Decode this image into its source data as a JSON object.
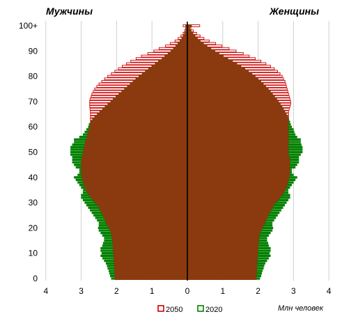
{
  "chart_data": {
    "type": "bar",
    "orientation": "horizontal-pyramid",
    "title": "",
    "left_label": "Мужчины",
    "right_label": "Женщины",
    "xlabel": "Млн человек",
    "x_ticks": [
      "4",
      "3",
      "2",
      "1",
      "0",
      "1",
      "2",
      "3",
      "4"
    ],
    "y_ticks": [
      "0",
      "10",
      "20",
      "30",
      "40",
      "50",
      "60",
      "70",
      "80",
      "90",
      "100+"
    ],
    "xlim": [
      -4,
      4
    ],
    "ylim": [
      0,
      100
    ],
    "grid": "vertical",
    "legend_position": "bottom-center",
    "series": [
      {
        "name": "2050",
        "style": "outline",
        "color": "#cc0000",
        "males": [
          2.05,
          2.05,
          2.06,
          2.06,
          2.06,
          2.07,
          2.07,
          2.08,
          2.08,
          2.08,
          2.1,
          2.1,
          2.1,
          2.1,
          2.12,
          2.12,
          2.13,
          2.14,
          2.16,
          2.18,
          2.22,
          2.26,
          2.3,
          2.32,
          2.35,
          2.38,
          2.42,
          2.46,
          2.5,
          2.54,
          2.6,
          2.66,
          2.72,
          2.78,
          2.82,
          2.86,
          2.9,
          2.92,
          2.94,
          2.96,
          2.98,
          2.99,
          3.0,
          3.0,
          3.0,
          3.0,
          3.0,
          3.0,
          2.98,
          2.96,
          2.95,
          2.94,
          2.92,
          2.9,
          2.88,
          2.86,
          2.84,
          2.82,
          2.8,
          2.78,
          2.76,
          2.75,
          2.74,
          2.74,
          2.74,
          2.74,
          2.74,
          2.75,
          2.76,
          2.76,
          2.76,
          2.75,
          2.72,
          2.7,
          2.66,
          2.62,
          2.56,
          2.5,
          2.42,
          2.34,
          2.25,
          2.15,
          2.05,
          1.95,
          1.84,
          1.72,
          1.6,
          1.45,
          1.3,
          1.12,
          0.95,
          0.8,
          0.62,
          0.48,
          0.35,
          0.26,
          0.18,
          0.12,
          0.08,
          0.05,
          0.12
        ],
        "females": [
          1.95,
          1.95,
          1.96,
          1.96,
          1.96,
          1.97,
          1.97,
          1.98,
          1.98,
          1.98,
          2.0,
          2.0,
          2.0,
          2.0,
          2.02,
          2.02,
          2.03,
          2.04,
          2.06,
          2.08,
          2.12,
          2.16,
          2.2,
          2.22,
          2.25,
          2.28,
          2.32,
          2.36,
          2.4,
          2.44,
          2.5,
          2.56,
          2.62,
          2.68,
          2.72,
          2.76,
          2.8,
          2.82,
          2.84,
          2.86,
          2.88,
          2.89,
          2.9,
          2.9,
          2.9,
          2.9,
          2.9,
          2.9,
          2.88,
          2.86,
          2.86,
          2.86,
          2.86,
          2.86,
          2.86,
          2.86,
          2.86,
          2.86,
          2.86,
          2.86,
          2.86,
          2.86,
          2.86,
          2.86,
          2.86,
          2.86,
          2.86,
          2.88,
          2.9,
          2.92,
          2.92,
          2.9,
          2.88,
          2.86,
          2.84,
          2.82,
          2.8,
          2.78,
          2.76,
          2.72,
          2.68,
          2.62,
          2.55,
          2.46,
          2.35,
          2.22,
          2.08,
          1.92,
          1.75,
          1.58,
          1.38,
          1.18,
          0.98,
          0.8,
          0.62,
          0.47,
          0.36,
          0.26,
          0.17,
          0.1,
          0.35
        ]
      },
      {
        "name": "2020",
        "style": "solid",
        "color": "#008000",
        "males": [
          2.15,
          2.18,
          2.2,
          2.22,
          2.25,
          2.27,
          2.3,
          2.35,
          2.4,
          2.45,
          2.42,
          2.45,
          2.45,
          2.4,
          2.38,
          2.35,
          2.35,
          2.4,
          2.45,
          2.5,
          2.52,
          2.5,
          2.5,
          2.55,
          2.6,
          2.65,
          2.7,
          2.75,
          2.8,
          2.85,
          2.9,
          2.95,
          3.0,
          3.0,
          2.95,
          2.95,
          3.0,
          3.05,
          3.1,
          3.15,
          3.2,
          3.1,
          3.05,
          3.05,
          3.15,
          3.2,
          3.25,
          3.25,
          3.25,
          3.3,
          3.3,
          3.3,
          3.3,
          3.25,
          3.2,
          3.2,
          3.05,
          2.95,
          2.9,
          2.85,
          2.8,
          2.78,
          2.74,
          2.68,
          2.62,
          2.55,
          2.48,
          2.4,
          2.33,
          2.25,
          2.17,
          2.1,
          2.02,
          1.94,
          1.86,
          1.78,
          1.7,
          1.62,
          1.54,
          1.46,
          1.37,
          1.28,
          1.19,
          1.1,
          1.01,
          0.91,
          0.82,
          0.72,
          0.64,
          0.55,
          0.47,
          0.4,
          0.33,
          0.27,
          0.21,
          0.16,
          0.12,
          0.08,
          0.05,
          0.03,
          0.05
        ],
        "females": [
          2.05,
          2.08,
          2.1,
          2.12,
          2.15,
          2.17,
          2.2,
          2.25,
          2.3,
          2.35,
          2.32,
          2.35,
          2.35,
          2.3,
          2.28,
          2.25,
          2.25,
          2.3,
          2.35,
          2.4,
          2.42,
          2.4,
          2.4,
          2.45,
          2.5,
          2.55,
          2.6,
          2.65,
          2.7,
          2.75,
          2.8,
          2.85,
          2.9,
          2.9,
          2.85,
          2.85,
          2.9,
          2.95,
          3.0,
          3.05,
          3.1,
          3.0,
          2.95,
          2.95,
          3.05,
          3.1,
          3.15,
          3.15,
          3.15,
          3.2,
          3.25,
          3.25,
          3.25,
          3.22,
          3.2,
          3.2,
          3.1,
          3.05,
          3.02,
          3.0,
          2.95,
          2.92,
          2.9,
          2.87,
          2.84,
          2.8,
          2.76,
          2.72,
          2.68,
          2.63,
          2.58,
          2.53,
          2.47,
          2.41,
          2.35,
          2.29,
          2.22,
          2.15,
          2.08,
          2.0,
          1.92,
          1.83,
          1.73,
          1.63,
          1.52,
          1.4,
          1.28,
          1.15,
          1.02,
          0.9,
          0.78,
          0.67,
          0.56,
          0.46,
          0.37,
          0.29,
          0.22,
          0.16,
          0.11,
          0.07,
          0.12
        ]
      }
    ],
    "overlap_color": "#8b3a0f"
  }
}
